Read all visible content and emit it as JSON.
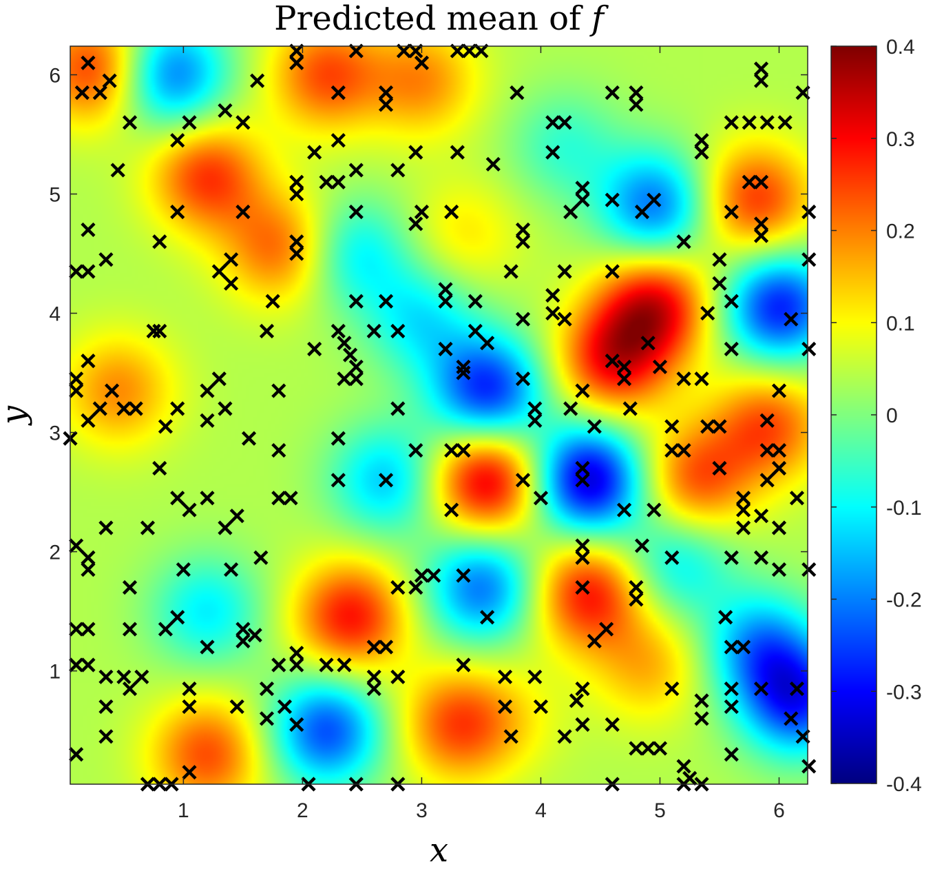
{
  "chart_data": {
    "type": "heatmap",
    "title": {
      "prefix": "Predicted mean of ",
      "var": "f"
    },
    "xlabel": "x",
    "ylabel": "y",
    "xlim": [
      0.05,
      6.24
    ],
    "ylim": [
      0.05,
      6.24
    ],
    "x_ticks": [
      1,
      2,
      3,
      4,
      5,
      6
    ],
    "y_ticks": [
      1,
      2,
      3,
      4,
      5,
      6
    ],
    "colorbar": {
      "colormap": "jet",
      "clim": [
        -0.4,
        0.4
      ],
      "ticks": [
        0.4,
        0.3,
        0.2,
        0.1,
        0,
        -0.1,
        -0.2,
        -0.3,
        -0.4
      ],
      "tick_labels": [
        "0.4",
        "0.3",
        "0.2",
        "0.1",
        "0",
        "-0.1",
        "-0.2",
        "-0.3",
        "-0.4"
      ]
    },
    "field_features": [
      {
        "x": 3.55,
        "y": 2.6,
        "value": 0.3
      },
      {
        "x": 4.4,
        "y": 2.6,
        "value": -0.38
      },
      {
        "x": 4.95,
        "y": 4.05,
        "value": 0.28
      },
      {
        "x": 4.6,
        "y": 3.6,
        "value": 0.25
      },
      {
        "x": 6.0,
        "y": 4.05,
        "value": -0.32
      },
      {
        "x": 3.55,
        "y": 3.35,
        "value": -0.32
      },
      {
        "x": 3.0,
        "y": 3.95,
        "value": -0.15
      },
      {
        "x": 2.45,
        "y": 4.5,
        "value": -0.15
      },
      {
        "x": 1.2,
        "y": 5.15,
        "value": 0.22
      },
      {
        "x": 1.8,
        "y": 4.55,
        "value": 0.18
      },
      {
        "x": 0.9,
        "y": 6.0,
        "value": -0.25
      },
      {
        "x": 0.25,
        "y": 6.05,
        "value": 0.22
      },
      {
        "x": 2.2,
        "y": 6.0,
        "value": 0.2
      },
      {
        "x": 3.0,
        "y": 5.95,
        "value": 0.15
      },
      {
        "x": 4.95,
        "y": 4.9,
        "value": -0.25
      },
      {
        "x": 4.2,
        "y": 5.4,
        "value": -0.1
      },
      {
        "x": 5.8,
        "y": 4.95,
        "value": 0.22
      },
      {
        "x": 5.9,
        "y": 3.05,
        "value": 0.2
      },
      {
        "x": 5.3,
        "y": 2.6,
        "value": 0.2
      },
      {
        "x": 4.4,
        "y": 1.65,
        "value": 0.25
      },
      {
        "x": 5.15,
        "y": 1.9,
        "value": -0.15
      },
      {
        "x": 5.85,
        "y": 1.2,
        "value": -0.22
      },
      {
        "x": 6.15,
        "y": 0.75,
        "value": -0.3
      },
      {
        "x": 4.9,
        "y": 1.05,
        "value": 0.12
      },
      {
        "x": 3.5,
        "y": 1.7,
        "value": -0.25
      },
      {
        "x": 2.4,
        "y": 1.45,
        "value": 0.25
      },
      {
        "x": 2.7,
        "y": 2.6,
        "value": -0.18
      },
      {
        "x": 2.2,
        "y": 0.5,
        "value": -0.28
      },
      {
        "x": 3.3,
        "y": 0.55,
        "value": 0.2
      },
      {
        "x": 1.2,
        "y": 0.3,
        "value": 0.2
      },
      {
        "x": 1.2,
        "y": 1.5,
        "value": -0.15
      },
      {
        "x": 0.45,
        "y": 3.35,
        "value": 0.15
      },
      {
        "x": 3.75,
        "y": 0.6,
        "value": 0.05
      },
      {
        "x": 3.35,
        "y": 4.65,
        "value": 0.08
      }
    ],
    "points": [
      [
        0.2,
        6.1
      ],
      [
        0.15,
        5.85
      ],
      [
        0.3,
        5.85
      ],
      [
        0.38,
        5.95
      ],
      [
        0.55,
        5.6
      ],
      [
        0.45,
        5.2
      ],
      [
        0.95,
        5.45
      ],
      [
        1.05,
        5.6
      ],
      [
        1.35,
        5.7
      ],
      [
        1.5,
        5.6
      ],
      [
        1.62,
        5.95
      ],
      [
        1.95,
        6.2
      ],
      [
        1.95,
        6.1
      ],
      [
        2.3,
        5.85
      ],
      [
        2.45,
        6.2
      ],
      [
        2.7,
        5.85
      ],
      [
        2.7,
        5.75
      ],
      [
        2.85,
        6.2
      ],
      [
        2.95,
        6.2
      ],
      [
        3.0,
        6.1
      ],
      [
        3.3,
        6.2
      ],
      [
        3.4,
        6.2
      ],
      [
        3.5,
        6.2
      ],
      [
        0.2,
        4.7
      ],
      [
        0.2,
        4.35
      ],
      [
        0.1,
        4.35
      ],
      [
        0.35,
        4.45
      ],
      [
        0.8,
        4.6
      ],
      [
        0.95,
        4.85
      ],
      [
        1.5,
        4.85
      ],
      [
        1.3,
        4.35
      ],
      [
        1.4,
        4.45
      ],
      [
        1.4,
        4.25
      ],
      [
        1.75,
        4.1
      ],
      [
        1.95,
        4.6
      ],
      [
        1.95,
        4.5
      ],
      [
        1.95,
        5.0
      ],
      [
        1.95,
        5.1
      ],
      [
        2.1,
        5.35
      ],
      [
        2.2,
        5.1
      ],
      [
        2.3,
        5.1
      ],
      [
        2.3,
        5.45
      ],
      [
        2.45,
        5.2
      ],
      [
        2.45,
        4.85
      ],
      [
        2.8,
        5.2
      ],
      [
        2.95,
        5.35
      ],
      [
        2.95,
        4.75
      ],
      [
        3.0,
        4.85
      ],
      [
        3.25,
        4.85
      ],
      [
        3.3,
        5.35
      ],
      [
        0.1,
        3.45
      ],
      [
        0.1,
        3.35
      ],
      [
        0.2,
        3.6
      ],
      [
        0.2,
        3.1
      ],
      [
        0.3,
        3.2
      ],
      [
        0.05,
        2.95
      ],
      [
        0.4,
        3.35
      ],
      [
        0.5,
        3.2
      ],
      [
        0.6,
        3.2
      ],
      [
        0.8,
        3.85
      ],
      [
        0.75,
        3.85
      ],
      [
        0.85,
        3.05
      ],
      [
        0.95,
        3.2
      ],
      [
        1.2,
        3.35
      ],
      [
        1.2,
        3.1
      ],
      [
        1.3,
        3.45
      ],
      [
        1.35,
        3.2
      ],
      [
        1.7,
        3.85
      ],
      [
        1.8,
        3.35
      ],
      [
        2.1,
        3.7
      ],
      [
        2.3,
        3.85
      ],
      [
        2.35,
        3.75
      ],
      [
        2.35,
        3.45
      ],
      [
        2.4,
        3.65
      ],
      [
        2.45,
        3.55
      ],
      [
        2.45,
        3.45
      ],
      [
        2.45,
        4.1
      ],
      [
        2.6,
        3.85
      ],
      [
        2.7,
        4.1
      ],
      [
        2.8,
        3.85
      ],
      [
        2.8,
        3.2
      ],
      [
        3.2,
        3.7
      ],
      [
        3.2,
        4.2
      ],
      [
        3.2,
        4.1
      ],
      [
        3.35,
        3.55
      ],
      [
        3.35,
        3.5
      ],
      [
        3.45,
        3.85
      ],
      [
        3.45,
        4.1
      ],
      [
        3.55,
        3.75
      ],
      [
        3.6,
        5.25
      ],
      [
        3.75,
        4.35
      ],
      [
        3.85,
        3.95
      ],
      [
        3.85,
        3.45
      ],
      [
        3.95,
        3.2
      ],
      [
        3.95,
        3.1
      ],
      [
        3.85,
        4.7
      ],
      [
        3.85,
        4.6
      ],
      [
        3.8,
        5.85
      ],
      [
        4.1,
        5.6
      ],
      [
        4.2,
        5.6
      ],
      [
        4.1,
        5.35
      ],
      [
        4.25,
        4.85
      ],
      [
        4.35,
        5.05
      ],
      [
        4.35,
        4.95
      ],
      [
        4.2,
        4.35
      ],
      [
        4.1,
        4.15
      ],
      [
        4.1,
        4.0
      ],
      [
        4.2,
        3.95
      ],
      [
        4.25,
        3.2
      ],
      [
        4.35,
        3.35
      ],
      [
        4.45,
        3.05
      ],
      [
        4.6,
        4.35
      ],
      [
        4.6,
        3.6
      ],
      [
        4.6,
        4.95
      ],
      [
        4.6,
        5.85
      ],
      [
        4.8,
        5.85
      ],
      [
        4.8,
        5.75
      ],
      [
        4.85,
        4.85
      ],
      [
        4.95,
        4.95
      ],
      [
        4.9,
        3.75
      ],
      [
        4.7,
        3.55
      ],
      [
        4.7,
        3.45
      ],
      [
        4.75,
        3.2
      ],
      [
        5.0,
        3.55
      ],
      [
        5.2,
        3.45
      ],
      [
        5.35,
        3.45
      ],
      [
        5.2,
        4.6
      ],
      [
        5.35,
        5.45
      ],
      [
        5.35,
        5.35
      ],
      [
        5.5,
        4.45
      ],
      [
        5.5,
        4.25
      ],
      [
        5.4,
        4.0
      ],
      [
        5.6,
        4.1
      ],
      [
        5.6,
        3.7
      ],
      [
        5.5,
        3.05
      ],
      [
        5.4,
        3.05
      ],
      [
        5.1,
        3.05
      ],
      [
        5.1,
        2.85
      ],
      [
        5.2,
        2.85
      ],
      [
        5.5,
        2.7
      ],
      [
        5.75,
        5.6
      ],
      [
        5.9,
        5.6
      ],
      [
        5.75,
        5.1
      ],
      [
        5.85,
        5.1
      ],
      [
        5.85,
        4.75
      ],
      [
        5.85,
        4.65
      ],
      [
        5.6,
        4.85
      ],
      [
        5.6,
        5.6
      ],
      [
        6.05,
        5.6
      ],
      [
        5.85,
        5.95
      ],
      [
        5.85,
        6.05
      ],
      [
        6.2,
        5.85
      ],
      [
        6.25,
        4.85
      ],
      [
        6.25,
        4.45
      ],
      [
        6.1,
        3.95
      ],
      [
        6.25,
        3.7
      ],
      [
        6.0,
        3.35
      ],
      [
        5.9,
        3.1
      ],
      [
        5.9,
        2.85
      ],
      [
        6.0,
        2.85
      ],
      [
        6.0,
        2.7
      ],
      [
        6.15,
        2.45
      ],
      [
        5.7,
        2.45
      ],
      [
        5.9,
        2.6
      ],
      [
        5.7,
        2.35
      ],
      [
        5.85,
        2.3
      ],
      [
        5.7,
        2.2
      ],
      [
        6.0,
        2.2
      ],
      [
        5.85,
        1.95
      ],
      [
        6.0,
        1.85
      ],
      [
        6.25,
        1.85
      ],
      [
        5.6,
        1.95
      ],
      [
        5.55,
        1.45
      ],
      [
        5.6,
        1.2
      ],
      [
        5.7,
        1.2
      ],
      [
        5.6,
        0.85
      ],
      [
        5.6,
        0.7
      ],
      [
        5.85,
        0.85
      ],
      [
        6.15,
        0.85
      ],
      [
        6.1,
        0.6
      ],
      [
        6.2,
        0.45
      ],
      [
        6.25,
        0.2
      ],
      [
        5.6,
        0.3
      ],
      [
        5.35,
        0.75
      ],
      [
        5.35,
        0.6
      ],
      [
        5.1,
        0.85
      ],
      [
        5.0,
        0.35
      ],
      [
        4.9,
        0.35
      ],
      [
        4.8,
        0.35
      ],
      [
        5.2,
        0.2
      ],
      [
        5.25,
        0.1
      ],
      [
        5.35,
        0.05
      ],
      [
        5.2,
        0.05
      ],
      [
        4.6,
        0.05
      ],
      [
        4.6,
        0.55
      ],
      [
        4.35,
        0.85
      ],
      [
        4.3,
        0.75
      ],
      [
        4.35,
        0.55
      ],
      [
        4.2,
        0.45
      ],
      [
        4.0,
        0.7
      ],
      [
        3.95,
        0.95
      ],
      [
        3.7,
        0.95
      ],
      [
        3.7,
        0.7
      ],
      [
        3.75,
        0.45
      ],
      [
        3.35,
        1.05
      ],
      [
        3.55,
        1.45
      ],
      [
        3.35,
        1.8
      ],
      [
        3.0,
        1.8
      ],
      [
        2.95,
        1.7
      ],
      [
        2.8,
        1.7
      ],
      [
        3.1,
        1.8
      ],
      [
        2.8,
        0.95
      ],
      [
        2.6,
        1.2
      ],
      [
        2.7,
        1.2
      ],
      [
        2.6,
        0.95
      ],
      [
        2.6,
        0.85
      ],
      [
        2.35,
        1.05
      ],
      [
        2.2,
        1.05
      ],
      [
        1.95,
        1.15
      ],
      [
        1.95,
        1.05
      ],
      [
        1.8,
        1.05
      ],
      [
        1.7,
        0.85
      ],
      [
        1.7,
        0.6
      ],
      [
        1.85,
        0.7
      ],
      [
        1.95,
        0.55
      ],
      [
        1.45,
        0.7
      ],
      [
        1.5,
        1.25
      ],
      [
        1.5,
        1.35
      ],
      [
        1.6,
        1.3
      ],
      [
        1.2,
        1.2
      ],
      [
        1.05,
        0.85
      ],
      [
        1.05,
        0.7
      ],
      [
        0.95,
        1.45
      ],
      [
        0.85,
        1.35
      ],
      [
        0.65,
        0.95
      ],
      [
        0.55,
        0.85
      ],
      [
        0.5,
        0.95
      ],
      [
        0.35,
        0.95
      ],
      [
        0.35,
        0.7
      ],
      [
        0.35,
        0.45
      ],
      [
        0.2,
        1.05
      ],
      [
        0.1,
        1.05
      ],
      [
        0.1,
        1.35
      ],
      [
        0.2,
        1.35
      ],
      [
        0.55,
        1.35
      ],
      [
        0.2,
        1.85
      ],
      [
        0.2,
        1.95
      ],
      [
        0.1,
        2.05
      ],
      [
        0.35,
        2.2
      ],
      [
        0.55,
        1.7
      ],
      [
        0.7,
        2.2
      ],
      [
        0.8,
        2.7
      ],
      [
        0.95,
        2.45
      ],
      [
        1.05,
        2.35
      ],
      [
        1.2,
        2.45
      ],
      [
        1.35,
        2.2
      ],
      [
        1.45,
        2.3
      ],
      [
        1.0,
        1.85
      ],
      [
        1.4,
        1.85
      ],
      [
        1.65,
        1.95
      ],
      [
        1.8,
        2.45
      ],
      [
        1.9,
        2.45
      ],
      [
        1.8,
        2.85
      ],
      [
        1.55,
        2.95
      ],
      [
        2.3,
        2.95
      ],
      [
        2.3,
        2.6
      ],
      [
        2.7,
        2.6
      ],
      [
        2.95,
        2.85
      ],
      [
        3.25,
        2.85
      ],
      [
        3.35,
        2.85
      ],
      [
        3.25,
        2.35
      ],
      [
        3.85,
        2.6
      ],
      [
        4.0,
        2.45
      ],
      [
        4.35,
        2.7
      ],
      [
        4.35,
        2.6
      ],
      [
        4.7,
        2.35
      ],
      [
        4.95,
        2.35
      ],
      [
        4.85,
        2.05
      ],
      [
        5.1,
        1.95
      ],
      [
        4.8,
        1.7
      ],
      [
        4.8,
        1.6
      ],
      [
        4.55,
        1.35
      ],
      [
        4.45,
        1.25
      ],
      [
        4.35,
        1.7
      ],
      [
        4.35,
        1.95
      ],
      [
        4.35,
        2.05
      ],
      [
        0.1,
        0.3
      ],
      [
        0.7,
        0.05
      ],
      [
        0.8,
        0.05
      ],
      [
        0.9,
        0.05
      ],
      [
        1.05,
        0.15
      ],
      [
        2.05,
        0.05
      ],
      [
        2.45,
        0.05
      ],
      [
        2.8,
        0.05
      ]
    ]
  }
}
